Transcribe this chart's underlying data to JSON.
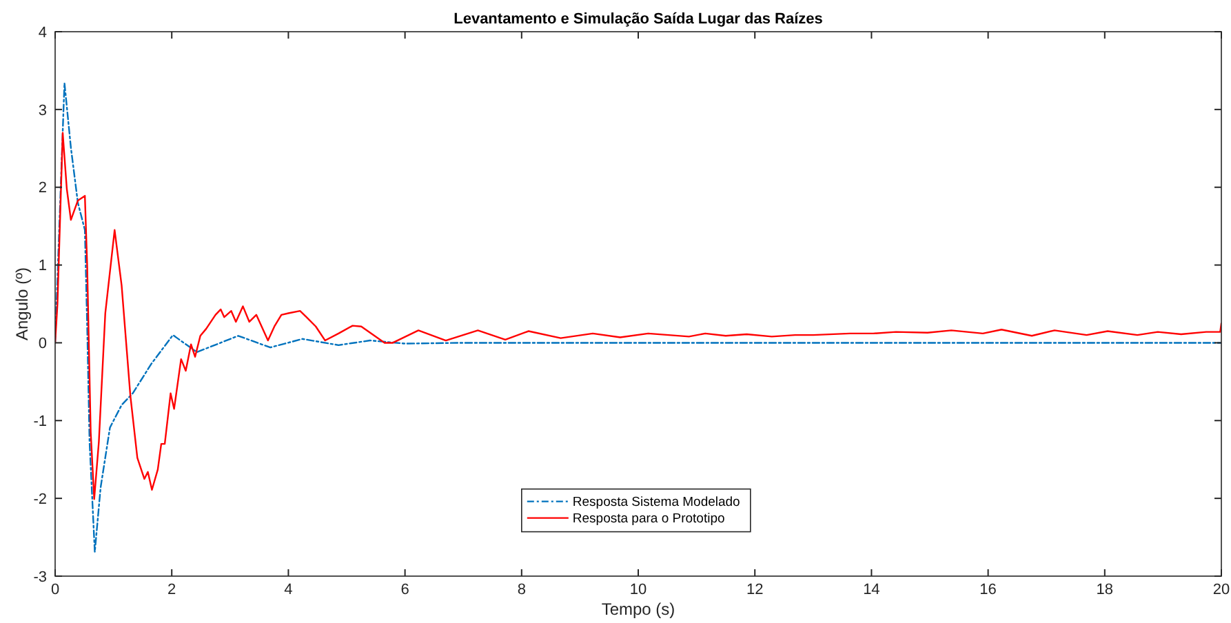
{
  "chart_data": {
    "type": "line",
    "title": "Levantamento e Simulação Saída Lugar das Raízes",
    "xlabel": "Tempo (s)",
    "ylabel": "Angulo (º)",
    "xlim": [
      0,
      20
    ],
    "xticks": [
      0,
      2,
      4,
      6,
      8,
      10,
      12,
      14,
      16,
      18,
      20
    ],
    "ylim": [
      -3,
      4
    ],
    "yticks": [
      -3,
      -2,
      -1,
      0,
      1,
      2,
      3,
      4
    ],
    "grid": false,
    "legend": "bottom",
    "marker": "none",
    "series": [
      {
        "name": "Resposta Sistema Modelado",
        "color": "#0072bd",
        "line_style": "dashdot",
        "x": [
          0,
          0.16,
          0.27,
          0.39,
          0.51,
          0.55,
          0.59,
          0.68,
          0.78,
          0.94,
          1.14,
          1.33,
          1.65,
          2.02,
          2.43,
          3.14,
          3.69,
          4.24,
          4.86,
          5.4,
          6,
          7,
          8,
          10,
          12,
          14,
          16,
          18,
          20
        ],
        "values": [
          0,
          3.34,
          2.51,
          1.8,
          1.45,
          0.2,
          -1.27,
          -2.69,
          -1.86,
          -1.09,
          -0.8,
          -0.65,
          -0.27,
          0.1,
          -0.12,
          0.09,
          -0.06,
          0.05,
          -0.03,
          0.03,
          -0.01,
          0,
          0,
          0,
          0,
          0,
          0,
          0,
          0
        ]
      },
      {
        "name": "Resposta para o Prototipo",
        "color": "#ff0000",
        "line_style": "solid",
        "x": [
          0,
          0.04,
          0.13,
          0.2,
          0.27,
          0.39,
          0.51,
          0.55,
          0.61,
          0.67,
          0.75,
          0.86,
          1.02,
          1.14,
          1.29,
          1.41,
          1.53,
          1.59,
          1.66,
          1.76,
          1.82,
          1.88,
          1.98,
          2.04,
          2.16,
          2.24,
          2.33,
          2.4,
          2.49,
          2.59,
          2.75,
          2.84,
          2.9,
          3.02,
          3.1,
          3.22,
          3.33,
          3.45,
          3.65,
          3.76,
          3.88,
          4.0,
          4.2,
          4.31,
          4.47,
          4.63,
          4.86,
          5.1,
          5.25,
          5.65,
          5.79,
          6.23,
          6.7,
          7.25,
          7.72,
          8.12,
          8.67,
          9.22,
          9.69,
          10.17,
          10.87,
          11.15,
          11.5,
          11.86,
          12.29,
          12.69,
          13.0,
          13.63,
          14.03,
          14.42,
          14.96,
          15.37,
          15.91,
          16.23,
          16.75,
          17.14,
          17.69,
          18.05,
          18.56,
          18.91,
          19.31,
          19.74,
          19.98,
          20
        ],
        "values": [
          0,
          0.5,
          2.7,
          1.98,
          1.58,
          1.83,
          1.89,
          0.98,
          -1.15,
          -2.01,
          -1.27,
          0.38,
          1.45,
          0.74,
          -0.68,
          -1.48,
          -1.75,
          -1.66,
          -1.89,
          -1.63,
          -1.3,
          -1.3,
          -0.65,
          -0.85,
          -0.21,
          -0.36,
          -0.02,
          -0.18,
          0.09,
          0.18,
          0.36,
          0.43,
          0.33,
          0.41,
          0.27,
          0.47,
          0.27,
          0.36,
          0.03,
          0.21,
          0.36,
          0.38,
          0.41,
          0.33,
          0.21,
          0.03,
          0.12,
          0.22,
          0.21,
          0,
          0,
          0.16,
          0.03,
          0.16,
          0.04,
          0.15,
          0.06,
          0.12,
          0.07,
          0.12,
          0.08,
          0.12,
          0.09,
          0.11,
          0.08,
          0.1,
          0.1,
          0.12,
          0.12,
          0.14,
          0.13,
          0.16,
          0.12,
          0.17,
          0.09,
          0.16,
          0.1,
          0.15,
          0.1,
          0.14,
          0.11,
          0.14,
          0.14,
          0.25
        ]
      }
    ]
  }
}
